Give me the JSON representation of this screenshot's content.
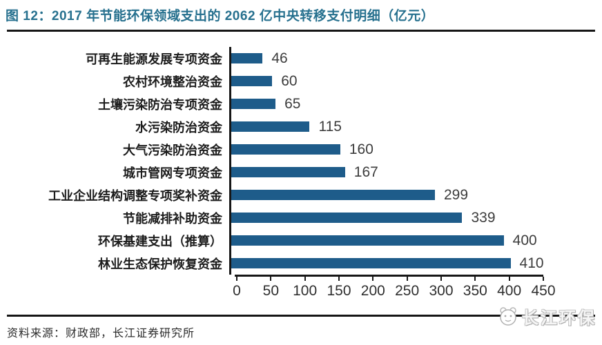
{
  "title": "图 12：2017 年节能环保领域支出的 2062 亿中央转移支付明细（亿元）",
  "footer": {
    "source": "资料来源：财政部，长江证券研究所"
  },
  "watermark": {
    "brand": "长江环保",
    "mascot_icon": "panda-face-icon"
  },
  "colors": {
    "bar": "#1e5c8a",
    "title_text": "#26708e",
    "axis_line": "#161616",
    "value_text": "#3c3c3c"
  },
  "chart_data": {
    "type": "bar",
    "orientation": "horizontal",
    "title": "图 12：2017 年节能环保领域支出的 2062 亿中央转移支付明细（亿元）",
    "categories": [
      "可再生能源发展专项资金",
      "农村环境整治资金",
      "土壤污染防治专项资金",
      "水污染防治资金",
      "大气污染防治资金",
      "城市管网专项资金",
      "工业企业结构调整专项奖补资金",
      "节能减排补助资金",
      "环保基建支出（推算）",
      "林业生态保护恢复资金"
    ],
    "values": [
      46,
      60,
      65,
      115,
      160,
      167,
      299,
      339,
      400,
      410
    ],
    "xlim": [
      0,
      450
    ],
    "xticks": [
      0,
      50,
      100,
      150,
      200,
      250,
      300,
      350,
      400,
      450
    ],
    "xlabel": "",
    "ylabel": "",
    "grid": false,
    "legend": false,
    "value_labels": true
  }
}
